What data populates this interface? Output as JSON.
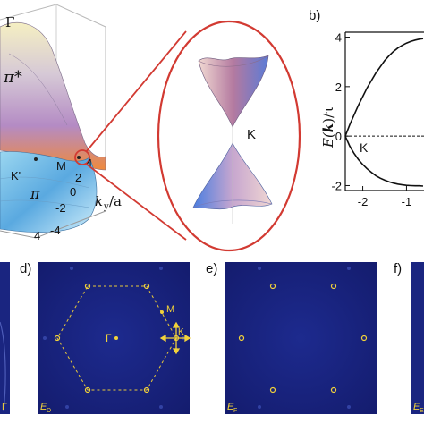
{
  "figure_a": {
    "labels": {
      "gamma": "Γ",
      "pi_star": "π*",
      "pi": "π",
      "m_point": "M",
      "k_prime": "K'",
      "ky_axis": "k",
      "ky_sub": "y",
      "ky_unit": "/a"
    },
    "ky_ticks": [
      "4",
      "2",
      "0",
      "-2",
      "-4"
    ],
    "kx_tick": "4",
    "zoom_label": "K"
  },
  "figure_b": {
    "letter": "b)",
    "ylabel_E": "E(",
    "ylabel_k": "k",
    "ylabel_rest": ")/τ",
    "k_label": "K",
    "accent_color": "#111111",
    "chart_data": {
      "type": "line",
      "xlabel": "",
      "ylabel": "E(k)/τ",
      "xlim": [
        -2.4,
        -0.6
      ],
      "ylim": [
        -2.2,
        4.2
      ],
      "xticks": [
        "-2",
        "-1"
      ],
      "yticks": [
        "4",
        "2",
        "0",
        "-2"
      ],
      "series": [
        {
          "x": [
            -2.42,
            -2.3,
            -2.2,
            -2.1,
            -2.0,
            -1.9,
            -1.8,
            -1.7,
            -1.6,
            -1.5,
            -1.4,
            -1.3,
            -1.2,
            -1.1,
            -1.0,
            -0.9,
            -0.8,
            -0.7,
            -0.62
          ],
          "y": [
            0.0,
            0.45,
            0.85,
            1.25,
            1.6,
            1.95,
            2.25,
            2.55,
            2.8,
            3.05,
            3.25,
            3.42,
            3.56,
            3.67,
            3.76,
            3.83,
            3.88,
            3.92,
            3.94
          ]
        },
        {
          "x": [
            -2.42,
            -2.3,
            -2.2,
            -2.1,
            -2.0,
            -1.9,
            -1.8,
            -1.7,
            -1.6,
            -1.5,
            -1.4,
            -1.3,
            -1.2,
            -1.1,
            -1.0,
            -0.9,
            -0.8,
            -0.7,
            -0.62
          ],
          "y": [
            0.0,
            -0.4,
            -0.7,
            -0.95,
            -1.15,
            -1.32,
            -1.47,
            -1.6,
            -1.7,
            -1.78,
            -1.85,
            -1.9,
            -1.94,
            -1.97,
            -1.99,
            -2.0,
            -2.01,
            -2.01,
            -2.02
          ]
        }
      ],
      "reference_line": {
        "y": 0,
        "style": "dashed"
      }
    }
  },
  "figure_d": {
    "letter": "d)",
    "m_label": "M",
    "gamma_label": "Γ",
    "k_label": "K",
    "corner_label": "E",
    "corner_sub": "D"
  },
  "figure_e": {
    "letter": "e)",
    "corner_label": "E",
    "corner_sub": "F"
  },
  "figure_f": {
    "letter": "f)",
    "corner_label": "E",
    "corner_sub": "E"
  },
  "figure_c_edge": {
    "corner_label": "Γ"
  }
}
